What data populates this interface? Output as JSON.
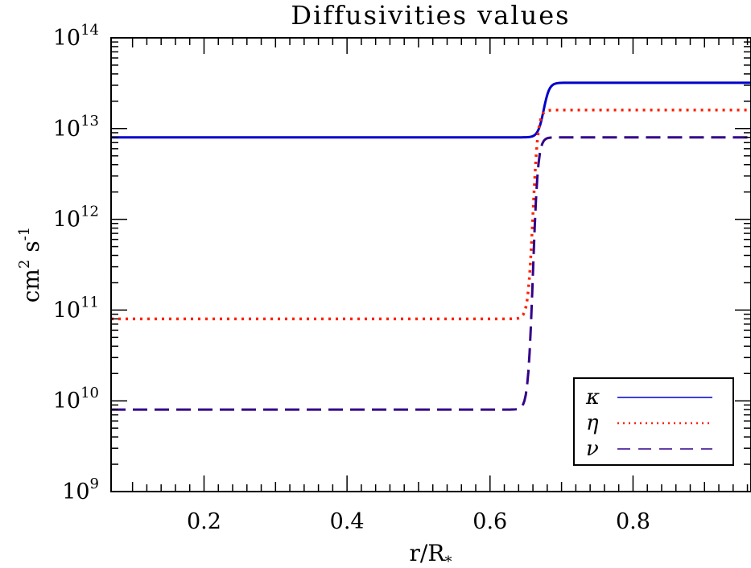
{
  "chart_data": {
    "type": "line",
    "title": "Diffusivities values",
    "xlabel": "r/R",
    "xlabel_subscript": "*",
    "ylabel_base": "cm",
    "ylabel_exp1": "2",
    "ylabel_mid": " s",
    "ylabel_exp2": "-1",
    "xlim": [
      0.07,
      0.965
    ],
    "ylim": [
      1000000000.0,
      100000000000000.0
    ],
    "y_scale": "log",
    "x_ticks": [
      {
        "value": 0.2,
        "label": "0.2"
      },
      {
        "value": 0.4,
        "label": "0.4"
      },
      {
        "value": 0.6,
        "label": "0.6"
      },
      {
        "value": 0.8,
        "label": "0.8"
      }
    ],
    "y_ticks": [
      {
        "value": 1000000000.0,
        "base": "10",
        "exp": "9"
      },
      {
        "value": 10000000000.0,
        "base": "10",
        "exp": "10"
      },
      {
        "value": 100000000000.0,
        "base": "10",
        "exp": "11"
      },
      {
        "value": 1000000000000.0,
        "base": "10",
        "exp": "12"
      },
      {
        "value": 10000000000000.0,
        "base": "10",
        "exp": "13"
      },
      {
        "value": 100000000000000.0,
        "base": "10",
        "exp": "14"
      }
    ],
    "grid": false,
    "legend_position": "bottom-right",
    "series": [
      {
        "name": "κ",
        "color": "#0000cc",
        "style": "solid",
        "low": 8000000000000.0,
        "high": 32000000000000.0,
        "r_center": 0.675,
        "width": 0.008
      },
      {
        "name": "η",
        "color": "#ff2200",
        "style": "dotted",
        "low": 80000000000.0,
        "high": 16000000000000.0,
        "r_center": 0.66,
        "width": 0.007
      },
      {
        "name": "ν",
        "color": "#330088",
        "style": "dashed",
        "low": 8000000000.0,
        "high": 8000000000000.0,
        "r_center": 0.66,
        "width": 0.007
      }
    ]
  }
}
